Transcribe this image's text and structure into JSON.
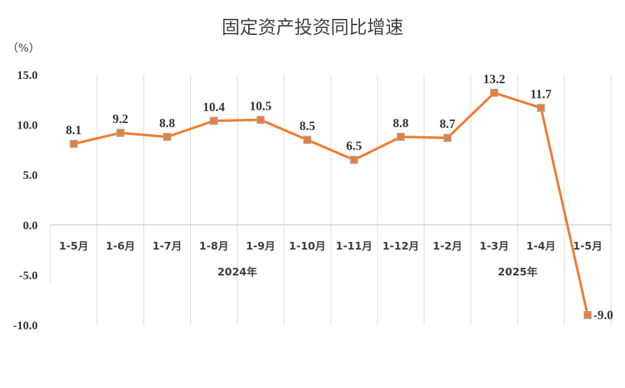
{
  "chart_data": {
    "type": "line",
    "title": "固定资产投资同比增速",
    "ylabel": "（%）",
    "categories": [
      "1-5月",
      "1-6月",
      "1-7月",
      "1-8月",
      "1-9月",
      "1-10月",
      "1-11月",
      "1-12月",
      "1-2月",
      "1-3月",
      "1-4月",
      "1-5月"
    ],
    "groups": [
      {
        "label": "2024年",
        "start": 0,
        "end": 7
      },
      {
        "label": "2025年",
        "start": 8,
        "end": 11
      }
    ],
    "series": [
      {
        "values": [
          8.1,
          9.2,
          8.8,
          10.4,
          10.5,
          8.5,
          6.5,
          8.8,
          8.7,
          13.2,
          11.7,
          -9.0
        ],
        "labels": [
          "8.1",
          "9.2",
          "8.8",
          "10.4",
          "10.5",
          "8.5",
          "6.5",
          "8.8",
          "8.7",
          "13.2",
          "11.7",
          "-9.0"
        ]
      }
    ],
    "yticks": [
      "15.0",
      "10.0",
      "5.0",
      "0.0",
      "-5.0",
      "-10.0"
    ],
    "ytick_values": [
      15,
      10,
      5,
      0,
      -5,
      -10
    ],
    "ylim": [
      -10,
      15
    ],
    "grid": "vertical",
    "line_color": "#ED7D31",
    "marker_color": "#A5A5A5"
  }
}
